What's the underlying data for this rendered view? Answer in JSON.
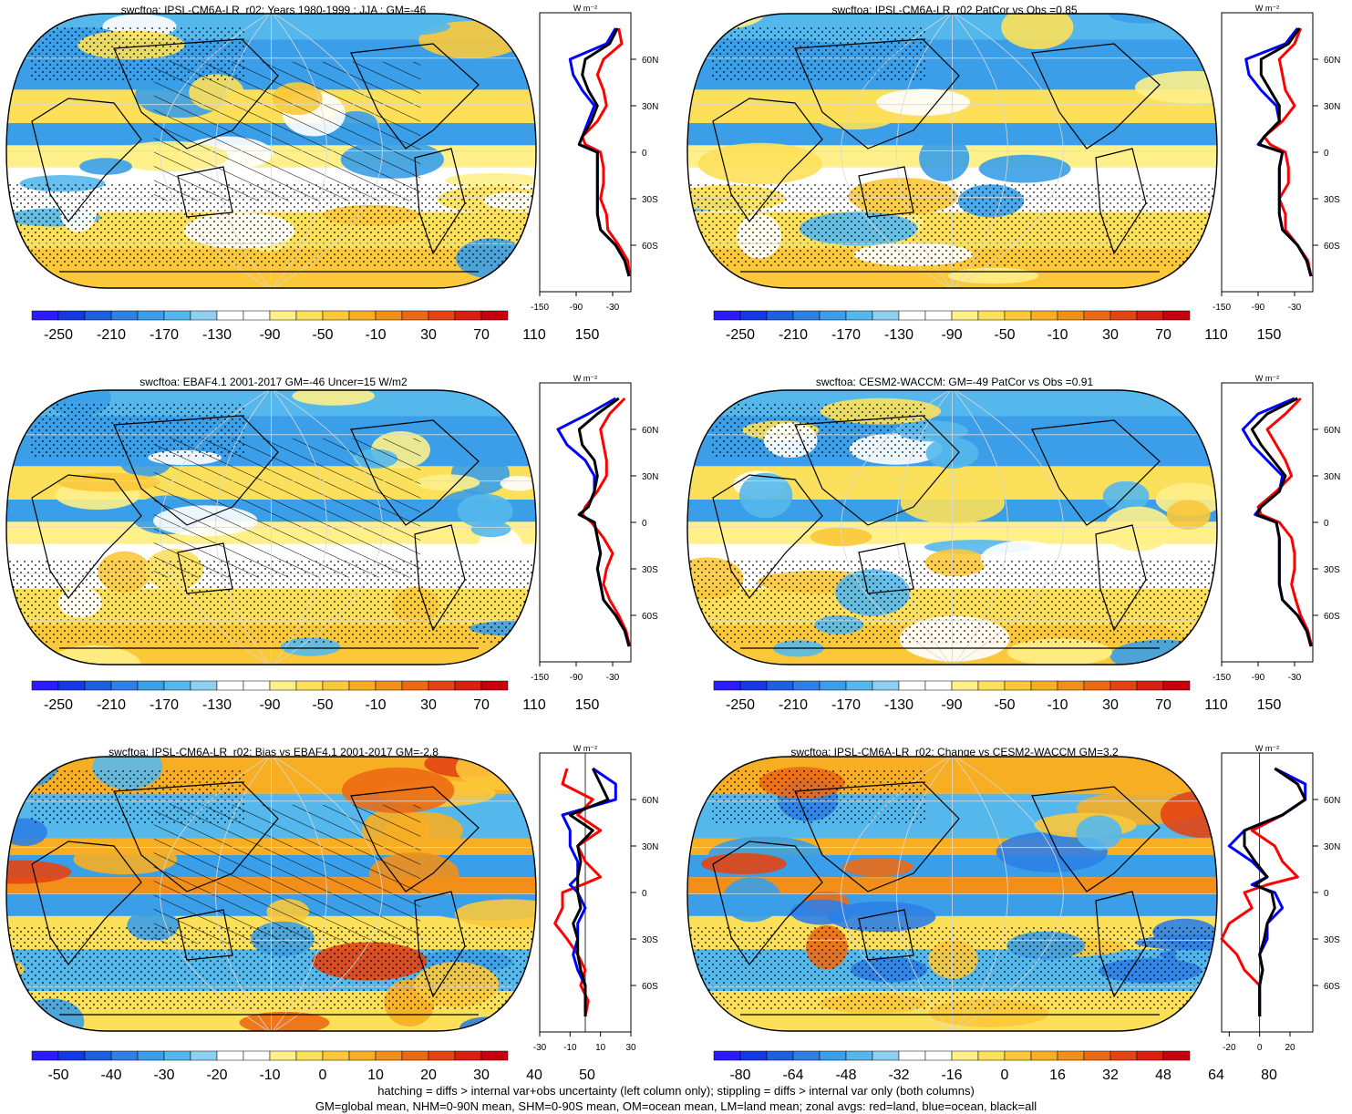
{
  "panels": [
    {
      "title": "swcftoa: IPSL-CM6A-LR_r02: Years 1980-1999 : JJA : GM=-46",
      "colorbar": {
        "levels": [
          "-250",
          "-210",
          "-170",
          "-130",
          "-90",
          "-50",
          "-10",
          "30",
          "70",
          "110",
          "150"
        ]
      },
      "zonal_xticks": [
        "-150",
        "-90",
        "-30"
      ],
      "zonal_xunit": "W m⁻²",
      "lat_ticks": [
        "60N",
        "30N",
        "0",
        "30S",
        "60S"
      ],
      "hatching": true
    },
    {
      "title": "swcftoa: IPSL-CM6A-LR_r02 PatCor vs Obs =0.85",
      "colorbar": {
        "levels": [
          "-250",
          "-210",
          "-170",
          "-130",
          "-90",
          "-50",
          "-10",
          "30",
          "70",
          "110",
          "150"
        ]
      },
      "zonal_xticks": [
        "-150",
        "-90",
        "-30"
      ],
      "zonal_xunit": "W m⁻²",
      "lat_ticks": [
        "60N",
        "30N",
        "0",
        "30S",
        "60S"
      ],
      "hatching": false
    },
    {
      "title": "swcftoa: EBAF4.1 2001-2017 GM=-46 Uncer=15 W/m2",
      "colorbar": {
        "levels": [
          "-250",
          "-210",
          "-170",
          "-130",
          "-90",
          "-50",
          "-10",
          "30",
          "70",
          "110",
          "150"
        ]
      },
      "zonal_xticks": [
        "-150",
        "-90",
        "-30"
      ],
      "zonal_xunit": "W m⁻²",
      "lat_ticks": [
        "60N",
        "30N",
        "0",
        "30S",
        "60S"
      ],
      "hatching": true
    },
    {
      "title": "swcftoa: CESM2-WACCM: GM=-49 PatCor vs Obs =0.91",
      "colorbar": {
        "levels": [
          "-250",
          "-210",
          "-170",
          "-130",
          "-90",
          "-50",
          "-10",
          "30",
          "70",
          "110",
          "150"
        ]
      },
      "zonal_xticks": [
        "-150",
        "-90",
        "-30"
      ],
      "zonal_xunit": "W m⁻²",
      "lat_ticks": [
        "60N",
        "30N",
        "0",
        "30S",
        "60S"
      ],
      "hatching": false
    },
    {
      "title": "swcftoa: IPSL-CM6A-LR_r02: Bias vs EBAF4.1 2001-2017 GM=-2.8",
      "colorbar": {
        "levels": [
          "-50",
          "-40",
          "-30",
          "-20",
          "-10",
          "0",
          "10",
          "20",
          "30",
          "40",
          "50"
        ]
      },
      "zonal_xticks": [
        "-30",
        "-10",
        "10",
        "30"
      ],
      "zonal_xunit": "W m⁻²",
      "lat_ticks": [
        "60N",
        "30N",
        "0",
        "30S",
        "60S"
      ],
      "hatching": true
    },
    {
      "title": "swcftoa: IPSL-CM6A-LR_r02: Change vs CESM2-WACCM GM=3.2",
      "colorbar": {
        "levels": [
          "-80",
          "-64",
          "-48",
          "-32",
          "-16",
          "0",
          "16",
          "32",
          "48",
          "64",
          "80"
        ]
      },
      "zonal_xticks": [
        "-20",
        "0",
        "20"
      ],
      "zonal_xunit": "W m⁻²",
      "lat_ticks": [
        "60N",
        "30N",
        "0",
        "30S",
        "60S"
      ],
      "hatching": false
    }
  ],
  "colors": {
    "land": "#ff0000",
    "ocean": "#0000ff",
    "all": "#000000",
    "palette": [
      "#2a1cff",
      "#1438e6",
      "#1e5fe0",
      "#2e7fe6",
      "#3a9ee8",
      "#55b8ec",
      "#8fd0f2",
      "#ffffff",
      "#ffffff",
      "#fff08a",
      "#fde05a",
      "#fbc83a",
      "#f7ae22",
      "#f28f18",
      "#ec6a14",
      "#e44412",
      "#d91f12",
      "#c8000e"
    ]
  },
  "footnote": {
    "line1": "hatching = diffs > internal var+obs uncertainty (left column only); stippling = diffs > internal var only (both columns)",
    "line2": "GM=global mean, NHM=0-90N mean, SHM=0-90S mean, OM=ocean mean, LM=land mean; zonal avgs: red=land, blue=ocean, black=all"
  },
  "chart_data": [
    {
      "type": "heatmap",
      "title": "swcftoa: IPSL-CM6A-LR_r02: Years 1980-1999 : JJA : GM=-46",
      "colorbar_ticks": [
        -250,
        -210,
        -170,
        -130,
        -90,
        -50,
        -10,
        30,
        70,
        110,
        150
      ],
      "zonal_mean": {
        "lat": [
          80,
          70,
          60,
          50,
          40,
          30,
          20,
          10,
          5,
          0,
          -10,
          -20,
          -30,
          -40,
          -50,
          -60,
          -70,
          -80
        ],
        "land": [
          -20,
          -15,
          -45,
          -55,
          -45,
          -40,
          -55,
          -80,
          -75,
          -50,
          -45,
          -45,
          -50,
          -40,
          -38,
          -20,
          -5,
          -2
        ],
        "ocean": [
          -25,
          -40,
          -100,
          -95,
          -80,
          -60,
          -70,
          -80,
          -85,
          -55,
          -55,
          -55,
          -55,
          -55,
          -50,
          -25,
          -10,
          -3
        ],
        "all": [
          -22,
          -35,
          -75,
          -80,
          -70,
          -55,
          -65,
          -80,
          -85,
          -55,
          -55,
          -55,
          -55,
          -55,
          -50,
          -25,
          -10,
          -3
        ]
      }
    },
    {
      "type": "heatmap",
      "title": "swcftoa: IPSL-CM6A-LR_r02 PatCor vs Obs =0.85",
      "colorbar_ticks": [
        -250,
        -210,
        -170,
        -130,
        -90,
        -50,
        -10,
        30,
        70,
        110,
        150
      ],
      "zonal_mean": {
        "lat": [
          80,
          70,
          60,
          50,
          40,
          30,
          20,
          10,
          5,
          0,
          -10,
          -20,
          -30,
          -40,
          -50,
          -60,
          -70,
          -80
        ],
        "land": [
          -20,
          -30,
          -55,
          -50,
          -45,
          -30,
          -50,
          -80,
          -70,
          -45,
          -40,
          -40,
          -55,
          -45,
          -45,
          -25,
          -8,
          -3
        ],
        "ocean": [
          -25,
          -45,
          -110,
          -105,
          -85,
          -60,
          -55,
          -80,
          -90,
          -50,
          -55,
          -55,
          -55,
          -55,
          -50,
          -25,
          -10,
          -3
        ],
        "all": [
          -22,
          -40,
          -85,
          -85,
          -70,
          -55,
          -55,
          -80,
          -88,
          -50,
          -55,
          -55,
          -55,
          -55,
          -50,
          -25,
          -10,
          -3
        ]
      }
    },
    {
      "type": "heatmap",
      "title": "swcftoa: EBAF4.1 2001-2017 GM=-46 Uncer=15 W/m2",
      "colorbar_ticks": [
        -250,
        -210,
        -170,
        -130,
        -90,
        -50,
        -10,
        30,
        70,
        110,
        150
      ],
      "zonal_mean": {
        "lat": [
          80,
          70,
          60,
          50,
          40,
          30,
          20,
          10,
          5,
          0,
          -10,
          -20,
          -30,
          -40,
          -50,
          -60,
          -70,
          -80
        ],
        "land": [
          -10,
          -35,
          -50,
          -45,
          -40,
          -40,
          -55,
          -75,
          -80,
          -65,
          -45,
          -30,
          -40,
          -45,
          -35,
          -20,
          -8,
          -2
        ],
        "ocean": [
          -25,
          -70,
          -120,
          -105,
          -75,
          -60,
          -60,
          -70,
          -85,
          -60,
          -55,
          -50,
          -55,
          -50,
          -45,
          -25,
          -10,
          -3
        ],
        "all": [
          -20,
          -55,
          -85,
          -80,
          -60,
          -55,
          -60,
          -70,
          -85,
          -60,
          -55,
          -50,
          -55,
          -50,
          -45,
          -25,
          -10,
          -3
        ]
      }
    },
    {
      "type": "heatmap",
      "title": "swcftoa: CESM2-WACCM: GM=-49 PatCor vs Obs =0.91",
      "colorbar_ticks": [
        -250,
        -210,
        -170,
        -130,
        -90,
        -50,
        -10,
        30,
        70,
        110,
        150
      ],
      "zonal_mean": {
        "lat": [
          80,
          70,
          60,
          50,
          40,
          30,
          20,
          10,
          5,
          0,
          -10,
          -20,
          -30,
          -40,
          -50,
          -60,
          -70,
          -80
        ],
        "land": [
          -20,
          -45,
          -75,
          -60,
          -45,
          -35,
          -60,
          -90,
          -85,
          -55,
          -35,
          -30,
          -30,
          -35,
          -28,
          -20,
          -8,
          -2
        ],
        "ocean": [
          -30,
          -90,
          -115,
          -100,
          -75,
          -50,
          -55,
          -85,
          -95,
          -60,
          -55,
          -55,
          -55,
          -55,
          -50,
          -25,
          -10,
          -3
        ],
        "all": [
          -25,
          -75,
          -100,
          -85,
          -65,
          -45,
          -55,
          -85,
          -92,
          -60,
          -55,
          -55,
          -55,
          -55,
          -50,
          -25,
          -10,
          -3
        ]
      }
    },
    {
      "type": "heatmap",
      "title": "swcftoa: IPSL-CM6A-LR_r02: Bias vs EBAF4.1 2001-2017 GM=-2.8",
      "colorbar_ticks": [
        -50,
        -40,
        -30,
        -20,
        -10,
        0,
        10,
        20,
        30,
        40,
        50
      ],
      "zonal_mean": {
        "lat": [
          80,
          70,
          60,
          50,
          40,
          30,
          20,
          10,
          5,
          0,
          -10,
          -20,
          -30,
          -40,
          -50,
          -60,
          -70,
          -80
        ],
        "land": [
          -12,
          -15,
          5,
          -5,
          10,
          -5,
          0,
          10,
          -2,
          -15,
          -15,
          -20,
          -12,
          -5,
          0,
          -3,
          2,
          0
        ],
        "ocean": [
          5,
          20,
          20,
          -15,
          -10,
          -10,
          -5,
          -5,
          -10,
          -5,
          0,
          -5,
          -5,
          -8,
          -5,
          0,
          0,
          0
        ],
        "all": [
          5,
          10,
          15,
          -10,
          5,
          -5,
          -3,
          -5,
          -5,
          -5,
          -3,
          -8,
          -5,
          -5,
          -3,
          0,
          0,
          0
        ]
      }
    },
    {
      "type": "heatmap",
      "title": "swcftoa: IPSL-CM6A-LR_r02: Change vs CESM2-WACCM GM=3.2",
      "colorbar_ticks": [
        -80,
        -64,
        -48,
        -32,
        -16,
        0,
        16,
        32,
        48,
        64,
        80
      ],
      "zonal_mean": {
        "lat": [
          80,
          70,
          60,
          50,
          40,
          30,
          20,
          10,
          5,
          0,
          -10,
          -20,
          -30,
          -40,
          -50,
          -60,
          -70,
          -80
        ],
        "land": [
          10,
          25,
          30,
          15,
          -5,
          10,
          15,
          25,
          5,
          -10,
          -5,
          -20,
          -25,
          -15,
          -10,
          0,
          0,
          0
        ],
        "ocean": [
          10,
          30,
          30,
          15,
          -10,
          -20,
          -5,
          5,
          -5,
          10,
          15,
          5,
          5,
          0,
          2,
          0,
          0,
          0
        ],
        "all": [
          10,
          25,
          30,
          15,
          -10,
          -10,
          -3,
          5,
          -3,
          8,
          10,
          5,
          3,
          0,
          2,
          0,
          0,
          0
        ]
      }
    }
  ]
}
